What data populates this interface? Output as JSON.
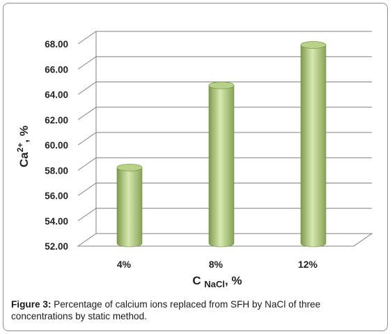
{
  "chart_data": {
    "type": "bar",
    "categories": [
      "4%",
      "8%",
      "12%"
    ],
    "values": [
      58.0,
      64.5,
      67.7
    ],
    "ylim": [
      52,
      68
    ],
    "yticks": [
      "52.00",
      "54.00",
      "56.00",
      "58.00",
      "60.00",
      "62.00",
      "64.00",
      "66.00",
      "68.00"
    ],
    "ylabel": {
      "base": "Ca",
      "sup": "2+",
      "rest": ", %"
    },
    "xlabel": {
      "base": "C",
      "sub": "NaCl",
      "rest": ", %"
    },
    "grid": true,
    "colors": {
      "bar_dark": "#7d9a4a",
      "bar_light": "#d6e8b0",
      "bar_top": "#b7d189",
      "grid": "#7f7f7f"
    }
  },
  "caption": {
    "label": "Figure 3:",
    "text": " Percentage of calcium ions replaced from SFH by NaCl of three concentrations by static method."
  }
}
